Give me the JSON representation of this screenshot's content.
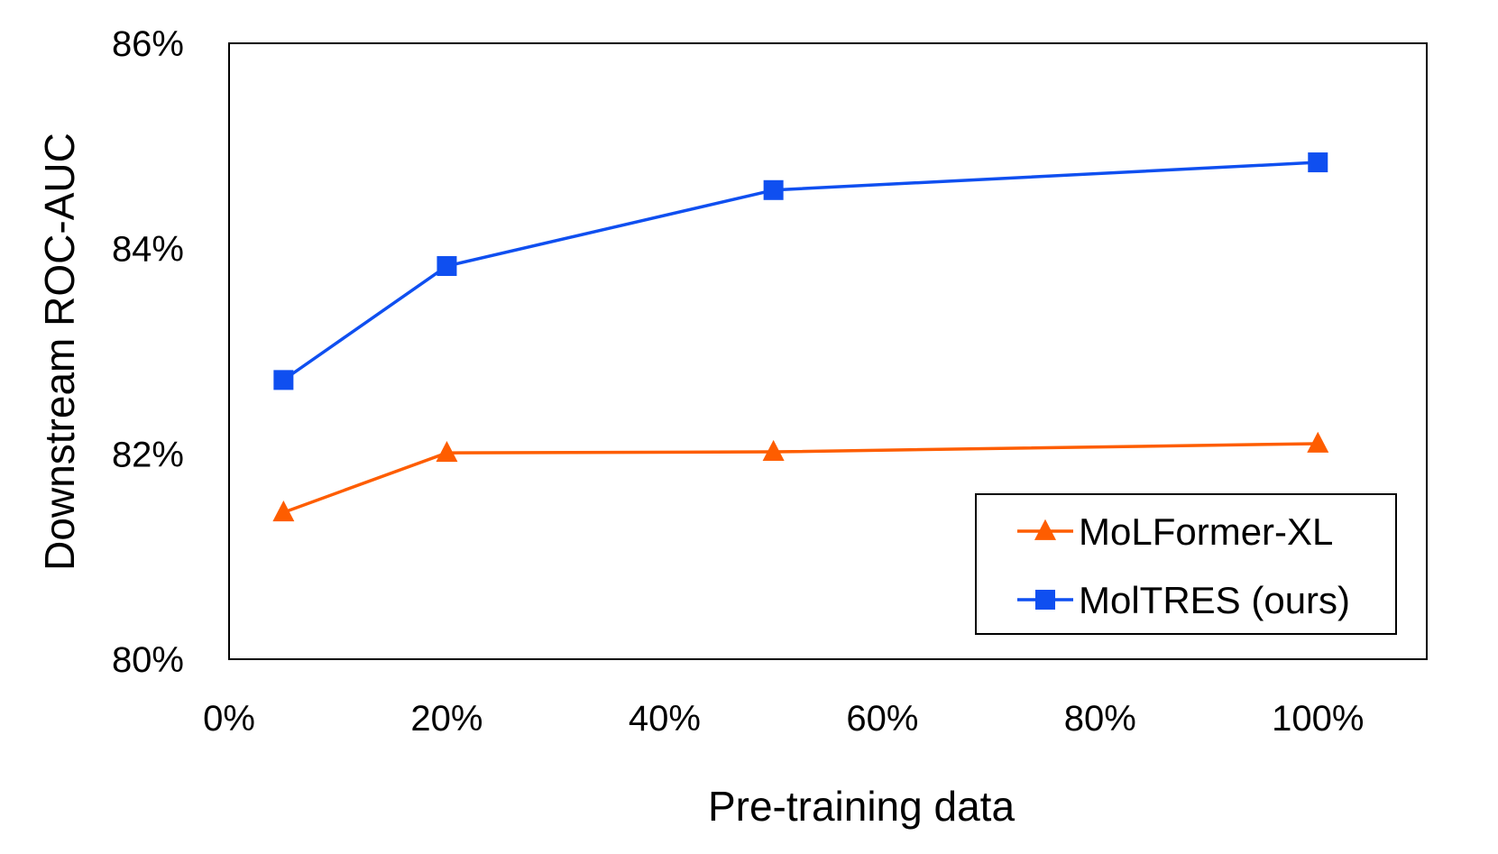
{
  "chart_data": {
    "type": "line",
    "title": "",
    "xlabel": "Pre-training data",
    "ylabel": "Downstream ROC-AUC",
    "xlim": [
      0,
      110
    ],
    "ylim": [
      80,
      86
    ],
    "xticks": [
      0,
      20,
      40,
      60,
      80,
      100
    ],
    "yticks": [
      80,
      82,
      84,
      86
    ],
    "xtick_labels": [
      "0%",
      "20%",
      "40%",
      "60%",
      "80%",
      "100%"
    ],
    "ytick_labels": [
      "80%",
      "82%",
      "84%",
      "86%"
    ],
    "grid": false,
    "legend_position": "bottom-right",
    "series": [
      {
        "name": "MoLFormer-XL",
        "marker": "triangle",
        "color": "#fe5d00",
        "x": [
          5,
          20,
          50,
          100
        ],
        "y": [
          81.43,
          82.01,
          82.02,
          82.1
        ]
      },
      {
        "name": "MolTRES (ours)",
        "marker": "square",
        "color": "#0f4ff0",
        "x": [
          5,
          20,
          50,
          100
        ],
        "y": [
          82.72,
          83.83,
          84.57,
          84.84
        ]
      }
    ]
  }
}
